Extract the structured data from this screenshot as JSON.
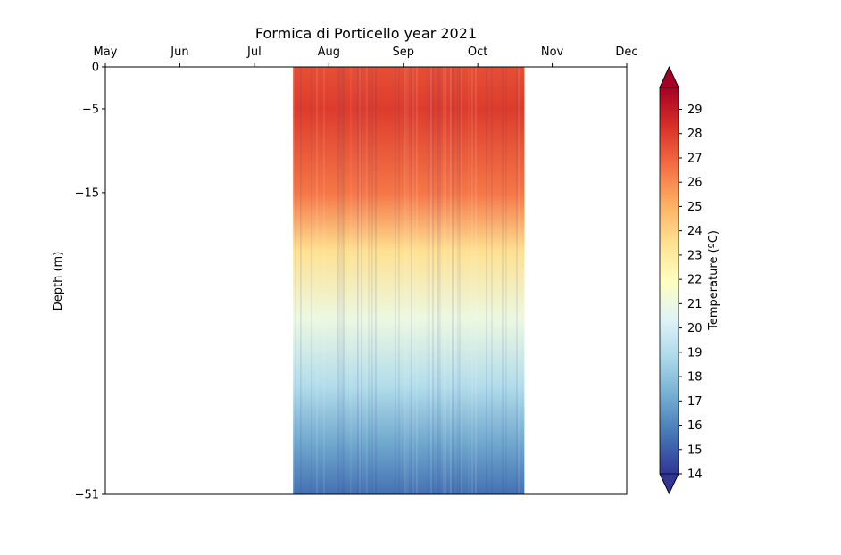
{
  "chart_data": {
    "type": "heatmap",
    "title": "Formica di Porticello year 2021",
    "xlabel": "",
    "ylabel": "Depth (m)",
    "x_axis": {
      "position": "top",
      "ticks": [
        "May",
        "Jun",
        "Jul",
        "Aug",
        "Sep",
        "Oct",
        "Nov",
        "Dec"
      ],
      "range": [
        "2021-05-01",
        "2021-12-01"
      ]
    },
    "y_axis": {
      "ticks": [
        0,
        -5,
        -15,
        -51
      ],
      "tick_labels": [
        "0",
        "−5",
        "−15",
        "−51"
      ],
      "range": [
        -51,
        0
      ]
    },
    "data_extent": {
      "start": "2021-07-17",
      "end": "2021-10-20"
    },
    "depth_profile": [
      {
        "depth": 0,
        "approx_temp": 27.5
      },
      {
        "depth": -5,
        "approx_temp": 28.0
      },
      {
        "depth": -15,
        "approx_temp": 26.5
      },
      {
        "depth": -22,
        "approx_temp": 23.5
      },
      {
        "depth": -30,
        "approx_temp": 21.0
      },
      {
        "depth": -38,
        "approx_temp": 19.0
      },
      {
        "depth": -45,
        "approx_temp": 17.0
      },
      {
        "depth": -51,
        "approx_temp": 15.5
      }
    ],
    "colorbar": {
      "label": "Temperature (ºC)",
      "range": [
        14,
        29.9
      ],
      "ticks": [
        14,
        15,
        16,
        17,
        18,
        19,
        20,
        21,
        22,
        23,
        24,
        25,
        26,
        27,
        28,
        29
      ],
      "extend": "both",
      "colormap": "RdYlBu_r",
      "colors": [
        "#313695",
        "#4575b4",
        "#74add1",
        "#abd9e9",
        "#e0f3f8",
        "#ffffbf",
        "#fee090",
        "#fdae61",
        "#f46d43",
        "#d73027",
        "#a50026"
      ]
    },
    "grid": false
  }
}
